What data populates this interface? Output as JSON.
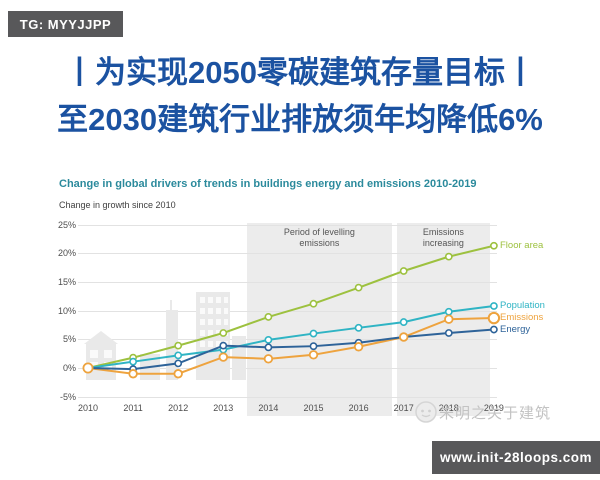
{
  "badges": {
    "top_left_label": "TG: MYYJJPP",
    "bottom_right_label": "www.init-28loops.com",
    "background_color": "#58585a"
  },
  "headline": {
    "line1": "丨为实现2050零碳建筑存量目标丨",
    "line2": "至2030建筑行业排放须年均降低6%",
    "color": "#1b52a1"
  },
  "watermark": {
    "text": "朱明之关于建筑",
    "color": "#c3c3c3"
  },
  "chart_data": {
    "type": "line",
    "title": "Change in global drivers of trends in buildings energy and emissions 2010-2019",
    "title_color": "#2b8a9c",
    "ylabel": "Change in growth since 2010",
    "x": [
      2010,
      2011,
      2012,
      2013,
      2014,
      2015,
      2016,
      2017,
      2018,
      2019
    ],
    "y_ticks_percent": [
      25,
      20,
      15,
      10,
      5,
      0,
      -5
    ],
    "ylim": [
      -5,
      25
    ],
    "grid": true,
    "legend_position": "right of line ends",
    "marker_style": "hollow circles",
    "series": [
      {
        "name": "Floor area",
        "color": "#9dc13f",
        "values": [
          0,
          1.8,
          3.9,
          6.1,
          8.9,
          11.2,
          14.0,
          16.9,
          19.4,
          21.3
        ]
      },
      {
        "name": "Population",
        "color": "#2fb4c4",
        "values": [
          0,
          1.1,
          2.2,
          3.2,
          4.9,
          6.0,
          7.0,
          8.0,
          9.8,
          10.8
        ]
      },
      {
        "name": "Emissions",
        "color": "#eea33e",
        "values": [
          0,
          -1.0,
          -1.0,
          1.9,
          1.6,
          2.3,
          3.7,
          5.4,
          8.5,
          8.7
        ]
      },
      {
        "name": "Energy",
        "color": "#2e6399",
        "values": [
          0,
          -0.2,
          0.8,
          3.9,
          3.6,
          3.8,
          4.4,
          5.4,
          6.1,
          6.7
        ]
      }
    ],
    "annotations": [
      {
        "lines": [
          "Period of levelling",
          "emissions"
        ],
        "x_start": 2013.52,
        "x_end": 2016.74
      },
      {
        "lines": [
          "Emissions",
          "increasing"
        ],
        "x_start": 2016.85,
        "x_end": 2018.91
      }
    ]
  }
}
